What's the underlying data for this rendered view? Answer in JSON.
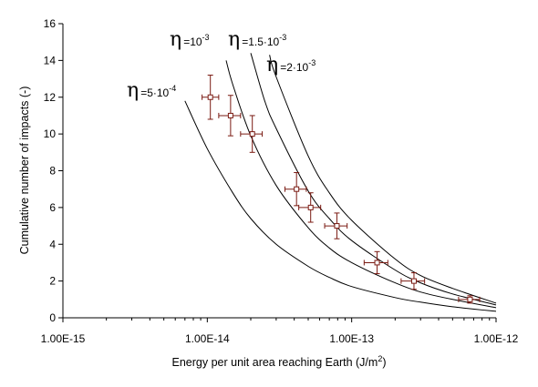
{
  "chart_data": {
    "type": "scatter",
    "xlabel": "Energy per unit area reaching Earth (J/m2)",
    "xlabel_parts": {
      "main": "Energy per unit area reaching Earth (J/m",
      "sup": "2",
      "tail": ")"
    },
    "ylabel": "Cumulative number of impacts (-)",
    "x_scale": "log",
    "xlim": [
      1e-15,
      1e-12
    ],
    "ylim": [
      0,
      16
    ],
    "x_ticks": [
      1e-15,
      1e-14,
      1e-13,
      1e-12
    ],
    "x_tick_labels": [
      "1.00E-15",
      "1.00E-14",
      "1.00E-13",
      "1.00E-12"
    ],
    "y_ticks": [
      0,
      2,
      4,
      6,
      8,
      10,
      12,
      14,
      16
    ],
    "y_tick_labels": [
      "0",
      "2",
      "4",
      "6",
      "8",
      "10",
      "12",
      "14",
      "16"
    ],
    "grid": false,
    "legend": "none",
    "observations": [
      {
        "x": 1.05e-14,
        "y": 12,
        "xerr": [
          1.3e-15,
          1.5e-15
        ],
        "yerr": [
          1.2,
          1.2
        ]
      },
      {
        "x": 1.45e-14,
        "y": 11,
        "xerr": [
          2.5e-15,
          2.5e-15
        ],
        "yerr": [
          1.1,
          1.1
        ]
      },
      {
        "x": 2.05e-14,
        "y": 10,
        "xerr": [
          3.5e-15,
          3.5e-15
        ],
        "yerr": [
          1.0,
          1.0
        ]
      },
      {
        "x": 4.15e-14,
        "y": 7,
        "xerr": [
          7e-15,
          7e-15
        ],
        "yerr": [
          0.9,
          0.9
        ]
      },
      {
        "x": 5.2e-14,
        "y": 6,
        "xerr": [
          9e-15,
          9e-15
        ],
        "yerr": [
          0.8,
          0.8
        ]
      },
      {
        "x": 7.9e-14,
        "y": 5,
        "xerr": [
          1.4e-14,
          1.4e-14
        ],
        "yerr": [
          0.7,
          0.7
        ]
      },
      {
        "x": 1.5e-13,
        "y": 3,
        "xerr": [
          2.8e-14,
          2.8e-14
        ],
        "yerr": [
          0.6,
          0.6
        ]
      },
      {
        "x": 2.7e-13,
        "y": 2,
        "xerr": [
          5e-14,
          5e-14
        ],
        "yerr": [
          0.45,
          0.45
        ]
      },
      {
        "x": 6.6e-13,
        "y": 1,
        "xerr": [
          1.1e-13,
          1.1e-13
        ],
        "yerr": [
          0.2,
          0.2
        ]
      }
    ],
    "curves": [
      {
        "eta_base": "5",
        "eta_exp": "-4",
        "x": [
          7e-15,
          1e-14,
          1.5e-14,
          2e-14,
          3e-14,
          5e-14,
          7e-14,
          1e-13,
          2e-13,
          3e-13,
          5e-13,
          1e-12
        ],
        "y": [
          11.8,
          9.2,
          6.8,
          5.4,
          4.0,
          2.8,
          2.2,
          1.7,
          1.1,
          0.85,
          0.6,
          0.35
        ]
      },
      {
        "eta_base": "10",
        "eta_exp": "-3",
        "x": [
          1.35e-14,
          1.5e-14,
          2e-14,
          3e-14,
          5e-14,
          7e-14,
          1e-13,
          2e-13,
          3e-13,
          5e-13,
          1e-12
        ],
        "y": [
          14.0,
          12.7,
          9.9,
          7.2,
          4.9,
          3.8,
          3.0,
          1.9,
          1.4,
          1.0,
          0.55
        ]
      },
      {
        "eta_base": "1.5",
        "eta_exp": "-3",
        "x": [
          2e-14,
          2.5e-14,
          3e-14,
          5e-14,
          7e-14,
          1e-13,
          2e-13,
          3e-13,
          5e-13,
          1e-12
        ],
        "y": [
          14.4,
          11.8,
          10.3,
          6.9,
          5.4,
          4.2,
          2.6,
          1.9,
          1.3,
          0.7
        ]
      },
      {
        "eta_base": "2",
        "eta_exp": "-3",
        "x": [
          2.7e-14,
          3e-14,
          5e-14,
          7e-14,
          1e-13,
          2e-13,
          3e-13,
          5e-13,
          1e-12
        ],
        "y": [
          14.3,
          13.1,
          8.8,
          6.8,
          5.3,
          3.2,
          2.3,
          1.6,
          0.8
        ]
      }
    ],
    "colors": {
      "curve": "#000000",
      "marker": "#7a1a12",
      "axis": "#000000"
    }
  }
}
